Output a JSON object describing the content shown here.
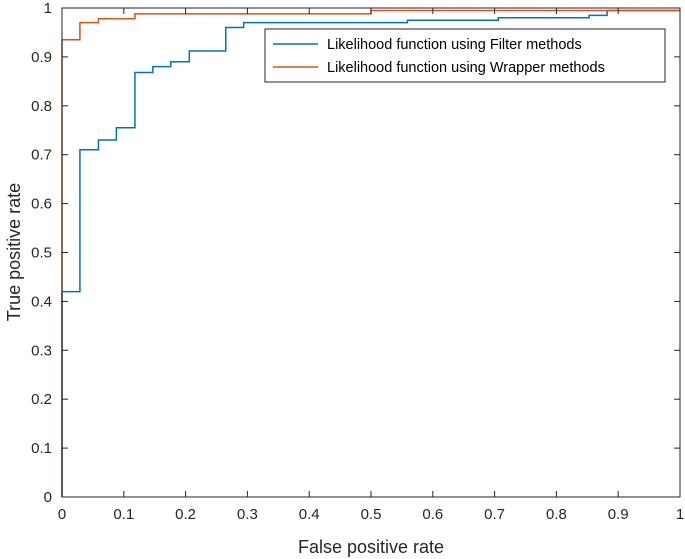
{
  "chart_data": {
    "type": "line",
    "title": "",
    "xlabel": "False positive rate",
    "ylabel": "True positive rate",
    "xlim": [
      0,
      1
    ],
    "ylim": [
      0,
      1
    ],
    "xticks": [
      "0",
      "0.1",
      "0.2",
      "0.3",
      "0.4",
      "0.5",
      "0.6",
      "0.7",
      "0.8",
      "0.9",
      "1"
    ],
    "yticks": [
      "0",
      "0.1",
      "0.2",
      "0.3",
      "0.4",
      "0.5",
      "0.6",
      "0.7",
      "0.8",
      "0.9",
      "1"
    ],
    "grid": false,
    "legend_position": "top-right",
    "series": [
      {
        "name": "Likelihood function using Filter methods",
        "color": "#0072BD",
        "step": true,
        "x": [
          0,
          0,
          0.029,
          0.029,
          0.059,
          0.059,
          0.088,
          0.088,
          0.118,
          0.118,
          0.147,
          0.147,
          0.176,
          0.176,
          0.206,
          0.206,
          0.265,
          0.265,
          0.294,
          0.294,
          0.559,
          0.559,
          0.706,
          0.706,
          0.853,
          0.853,
          0.882,
          0.882,
          1
        ],
        "y": [
          0,
          0.42,
          0.42,
          0.71,
          0.71,
          0.73,
          0.73,
          0.755,
          0.755,
          0.868,
          0.868,
          0.88,
          0.88,
          0.89,
          0.89,
          0.912,
          0.912,
          0.96,
          0.96,
          0.97,
          0.97,
          0.975,
          0.975,
          0.98,
          0.98,
          0.985,
          0.985,
          0.995,
          0.995
        ]
      },
      {
        "name": "Likelihood function using Wrapper methods",
        "color": "#D95319",
        "step": true,
        "x": [
          0,
          0,
          0.029,
          0.029,
          0.059,
          0.059,
          0.118,
          0.118,
          0.5,
          0.5,
          1
        ],
        "y": [
          0,
          0.935,
          0.935,
          0.97,
          0.97,
          0.978,
          0.978,
          0.988,
          0.988,
          0.995,
          0.995
        ]
      }
    ]
  }
}
